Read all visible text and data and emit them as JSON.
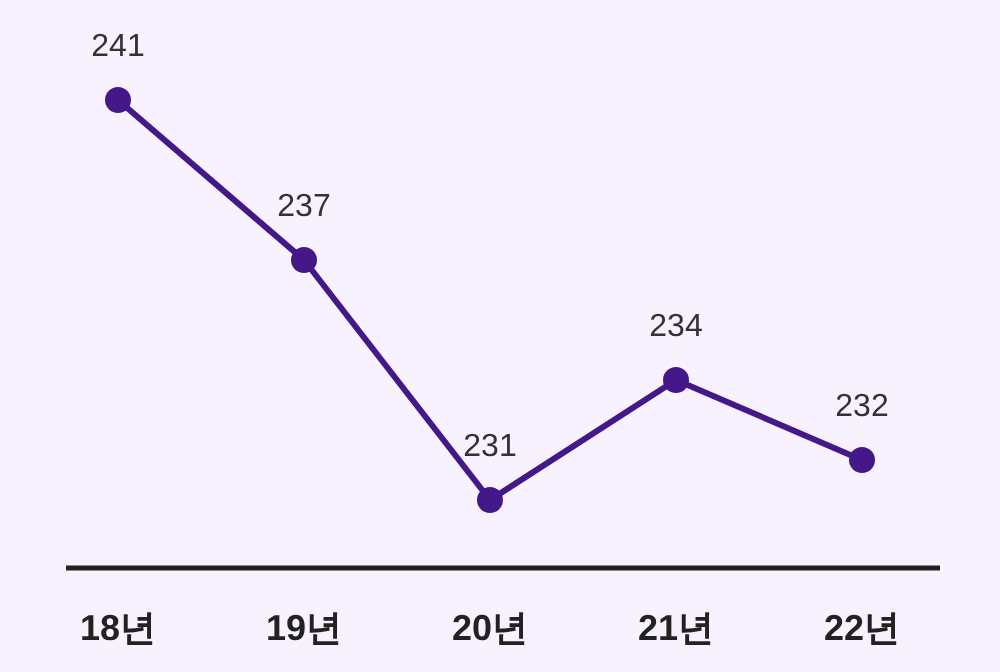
{
  "chart_data": {
    "type": "line",
    "categories": [
      "18년",
      "19년",
      "20년",
      "21년",
      "22년"
    ],
    "series": [
      {
        "color": "#45188a",
        "values": [
          241,
          237,
          231,
          234,
          232
        ]
      }
    ],
    "data_labels": true,
    "marker": "circle",
    "line_style": "solid"
  }
}
